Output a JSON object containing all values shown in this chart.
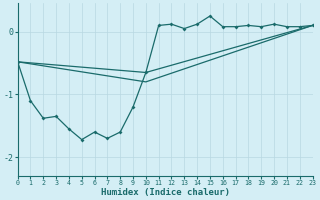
{
  "xlabel": "Humidex (Indice chaleur)",
  "ylabel": "",
  "xlim": [
    0,
    23
  ],
  "ylim": [
    -2.3,
    0.45
  ],
  "yticks": [
    0,
    -1,
    -2
  ],
  "xticks": [
    0,
    1,
    2,
    3,
    4,
    5,
    6,
    7,
    8,
    9,
    10,
    11,
    12,
    13,
    14,
    15,
    16,
    17,
    18,
    19,
    20,
    21,
    22,
    23
  ],
  "bg_color": "#d4eef5",
  "line_color": "#1a6b6b",
  "grid_color": "#b8d8e2",
  "line1_x": [
    0,
    1,
    2,
    3,
    4,
    5,
    6,
    7,
    8,
    9,
    10,
    11,
    12,
    13,
    14,
    15,
    16,
    17,
    18,
    19,
    20,
    21,
    22,
    23
  ],
  "line1_y": [
    -0.48,
    -1.1,
    -1.38,
    -1.35,
    -1.55,
    -1.72,
    -1.6,
    -1.7,
    -1.6,
    -1.2,
    -0.65,
    0.1,
    0.12,
    0.05,
    0.12,
    0.25,
    0.08,
    0.08,
    0.1,
    0.08,
    0.12,
    0.08,
    0.08,
    0.1
  ],
  "line2_x": [
    0,
    10,
    23
  ],
  "line2_y": [
    -0.48,
    -0.65,
    0.1
  ],
  "line3_x": [
    0,
    10,
    23
  ],
  "line3_y": [
    -0.48,
    -0.8,
    0.1
  ]
}
